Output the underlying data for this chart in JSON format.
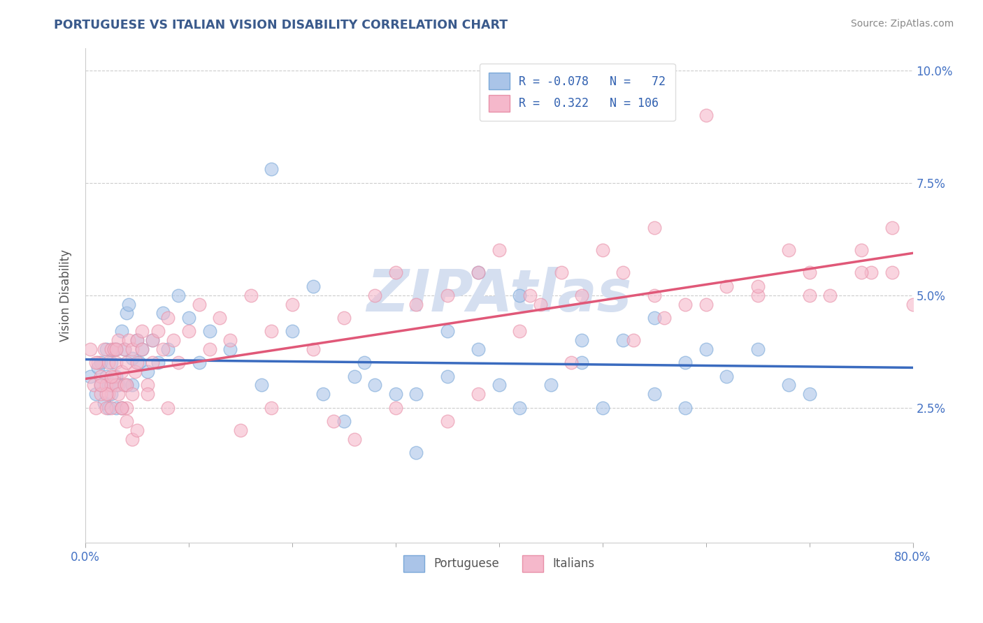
{
  "title": "PORTUGUESE VS ITALIAN VISION DISABILITY CORRELATION CHART",
  "source": "Source: ZipAtlas.com",
  "ylabel": "Vision Disability",
  "yticks": [
    0.0,
    0.025,
    0.05,
    0.075,
    0.1
  ],
  "ytick_labels": [
    "",
    "2.5%",
    "5.0%",
    "7.5%",
    "10.0%"
  ],
  "xlim": [
    0.0,
    0.8
  ],
  "ylim": [
    -0.005,
    0.105
  ],
  "portuguese_R": -0.078,
  "portuguese_N": 72,
  "italian_R": 0.322,
  "italian_N": 106,
  "portuguese_color": "#aac4e8",
  "italian_color": "#f5b8cb",
  "portuguese_edge_color": "#7aa8d8",
  "italian_edge_color": "#e890a8",
  "portuguese_line_color": "#3a6bbf",
  "italian_line_color": "#e05878",
  "legend_text_color": "#3060b0",
  "watermark_color": "#d5dff0",
  "portuguese_x": [
    0.005,
    0.01,
    0.012,
    0.015,
    0.015,
    0.018,
    0.02,
    0.02,
    0.022,
    0.022,
    0.025,
    0.025,
    0.025,
    0.028,
    0.03,
    0.03,
    0.03,
    0.032,
    0.035,
    0.035,
    0.038,
    0.04,
    0.04,
    0.042,
    0.045,
    0.045,
    0.05,
    0.052,
    0.055,
    0.06,
    0.065,
    0.07,
    0.075,
    0.08,
    0.09,
    0.1,
    0.11,
    0.12,
    0.14,
    0.17,
    0.2,
    0.23,
    0.26,
    0.28,
    0.32,
    0.35,
    0.38,
    0.42,
    0.45,
    0.48,
    0.52,
    0.55,
    0.58,
    0.62,
    0.65,
    0.68,
    0.25,
    0.3,
    0.5,
    0.6,
    0.7,
    0.38,
    0.32,
    0.42,
    0.55,
    0.48,
    0.58,
    0.18,
    0.22,
    0.27,
    0.4,
    0.35
  ],
  "portuguese_y": [
    0.032,
    0.028,
    0.034,
    0.03,
    0.035,
    0.026,
    0.032,
    0.038,
    0.03,
    0.025,
    0.028,
    0.035,
    0.03,
    0.038,
    0.025,
    0.032,
    0.038,
    0.03,
    0.042,
    0.025,
    0.038,
    0.046,
    0.03,
    0.048,
    0.036,
    0.03,
    0.04,
    0.035,
    0.038,
    0.033,
    0.04,
    0.035,
    0.046,
    0.038,
    0.05,
    0.045,
    0.035,
    0.042,
    0.038,
    0.03,
    0.042,
    0.028,
    0.032,
    0.03,
    0.028,
    0.032,
    0.038,
    0.025,
    0.03,
    0.035,
    0.04,
    0.028,
    0.025,
    0.032,
    0.038,
    0.03,
    0.022,
    0.028,
    0.025,
    0.038,
    0.028,
    0.055,
    0.015,
    0.05,
    0.045,
    0.04,
    0.035,
    0.078,
    0.052,
    0.035,
    0.03,
    0.042
  ],
  "italian_x": [
    0.005,
    0.008,
    0.01,
    0.012,
    0.015,
    0.015,
    0.018,
    0.02,
    0.02,
    0.022,
    0.022,
    0.025,
    0.025,
    0.025,
    0.028,
    0.028,
    0.03,
    0.03,
    0.032,
    0.032,
    0.035,
    0.035,
    0.038,
    0.038,
    0.04,
    0.04,
    0.042,
    0.045,
    0.045,
    0.048,
    0.05,
    0.05,
    0.055,
    0.055,
    0.06,
    0.065,
    0.065,
    0.07,
    0.075,
    0.08,
    0.085,
    0.09,
    0.1,
    0.11,
    0.12,
    0.13,
    0.14,
    0.16,
    0.18,
    0.2,
    0.22,
    0.25,
    0.28,
    0.3,
    0.32,
    0.35,
    0.38,
    0.4,
    0.43,
    0.46,
    0.5,
    0.55,
    0.6,
    0.65,
    0.7,
    0.75,
    0.78,
    0.48,
    0.52,
    0.58,
    0.62,
    0.68,
    0.72,
    0.76,
    0.8,
    0.42,
    0.44,
    0.47,
    0.53,
    0.56,
    0.38,
    0.35,
    0.3,
    0.26,
    0.24,
    0.18,
    0.15,
    0.08,
    0.06,
    0.04,
    0.03,
    0.025,
    0.02,
    0.015,
    0.01,
    0.55,
    0.6,
    0.65,
    0.7,
    0.75,
    0.78,
    0.035,
    0.04,
    0.045,
    0.05
  ],
  "italian_y": [
    0.038,
    0.03,
    0.025,
    0.035,
    0.028,
    0.032,
    0.038,
    0.025,
    0.03,
    0.028,
    0.035,
    0.03,
    0.038,
    0.025,
    0.032,
    0.038,
    0.03,
    0.035,
    0.028,
    0.04,
    0.025,
    0.033,
    0.038,
    0.03,
    0.035,
    0.03,
    0.04,
    0.028,
    0.038,
    0.033,
    0.04,
    0.035,
    0.042,
    0.038,
    0.03,
    0.04,
    0.035,
    0.042,
    0.038,
    0.045,
    0.04,
    0.035,
    0.042,
    0.048,
    0.038,
    0.045,
    0.04,
    0.05,
    0.042,
    0.048,
    0.038,
    0.045,
    0.05,
    0.055,
    0.048,
    0.05,
    0.055,
    0.06,
    0.05,
    0.055,
    0.06,
    0.065,
    0.09,
    0.05,
    0.055,
    0.06,
    0.065,
    0.05,
    0.055,
    0.048,
    0.052,
    0.06,
    0.05,
    0.055,
    0.048,
    0.042,
    0.048,
    0.035,
    0.04,
    0.045,
    0.028,
    0.022,
    0.025,
    0.018,
    0.022,
    0.025,
    0.02,
    0.025,
    0.028,
    0.025,
    0.038,
    0.032,
    0.028,
    0.03,
    0.035,
    0.05,
    0.048,
    0.052,
    0.05,
    0.055,
    0.055,
    0.025,
    0.022,
    0.018,
    0.02
  ]
}
